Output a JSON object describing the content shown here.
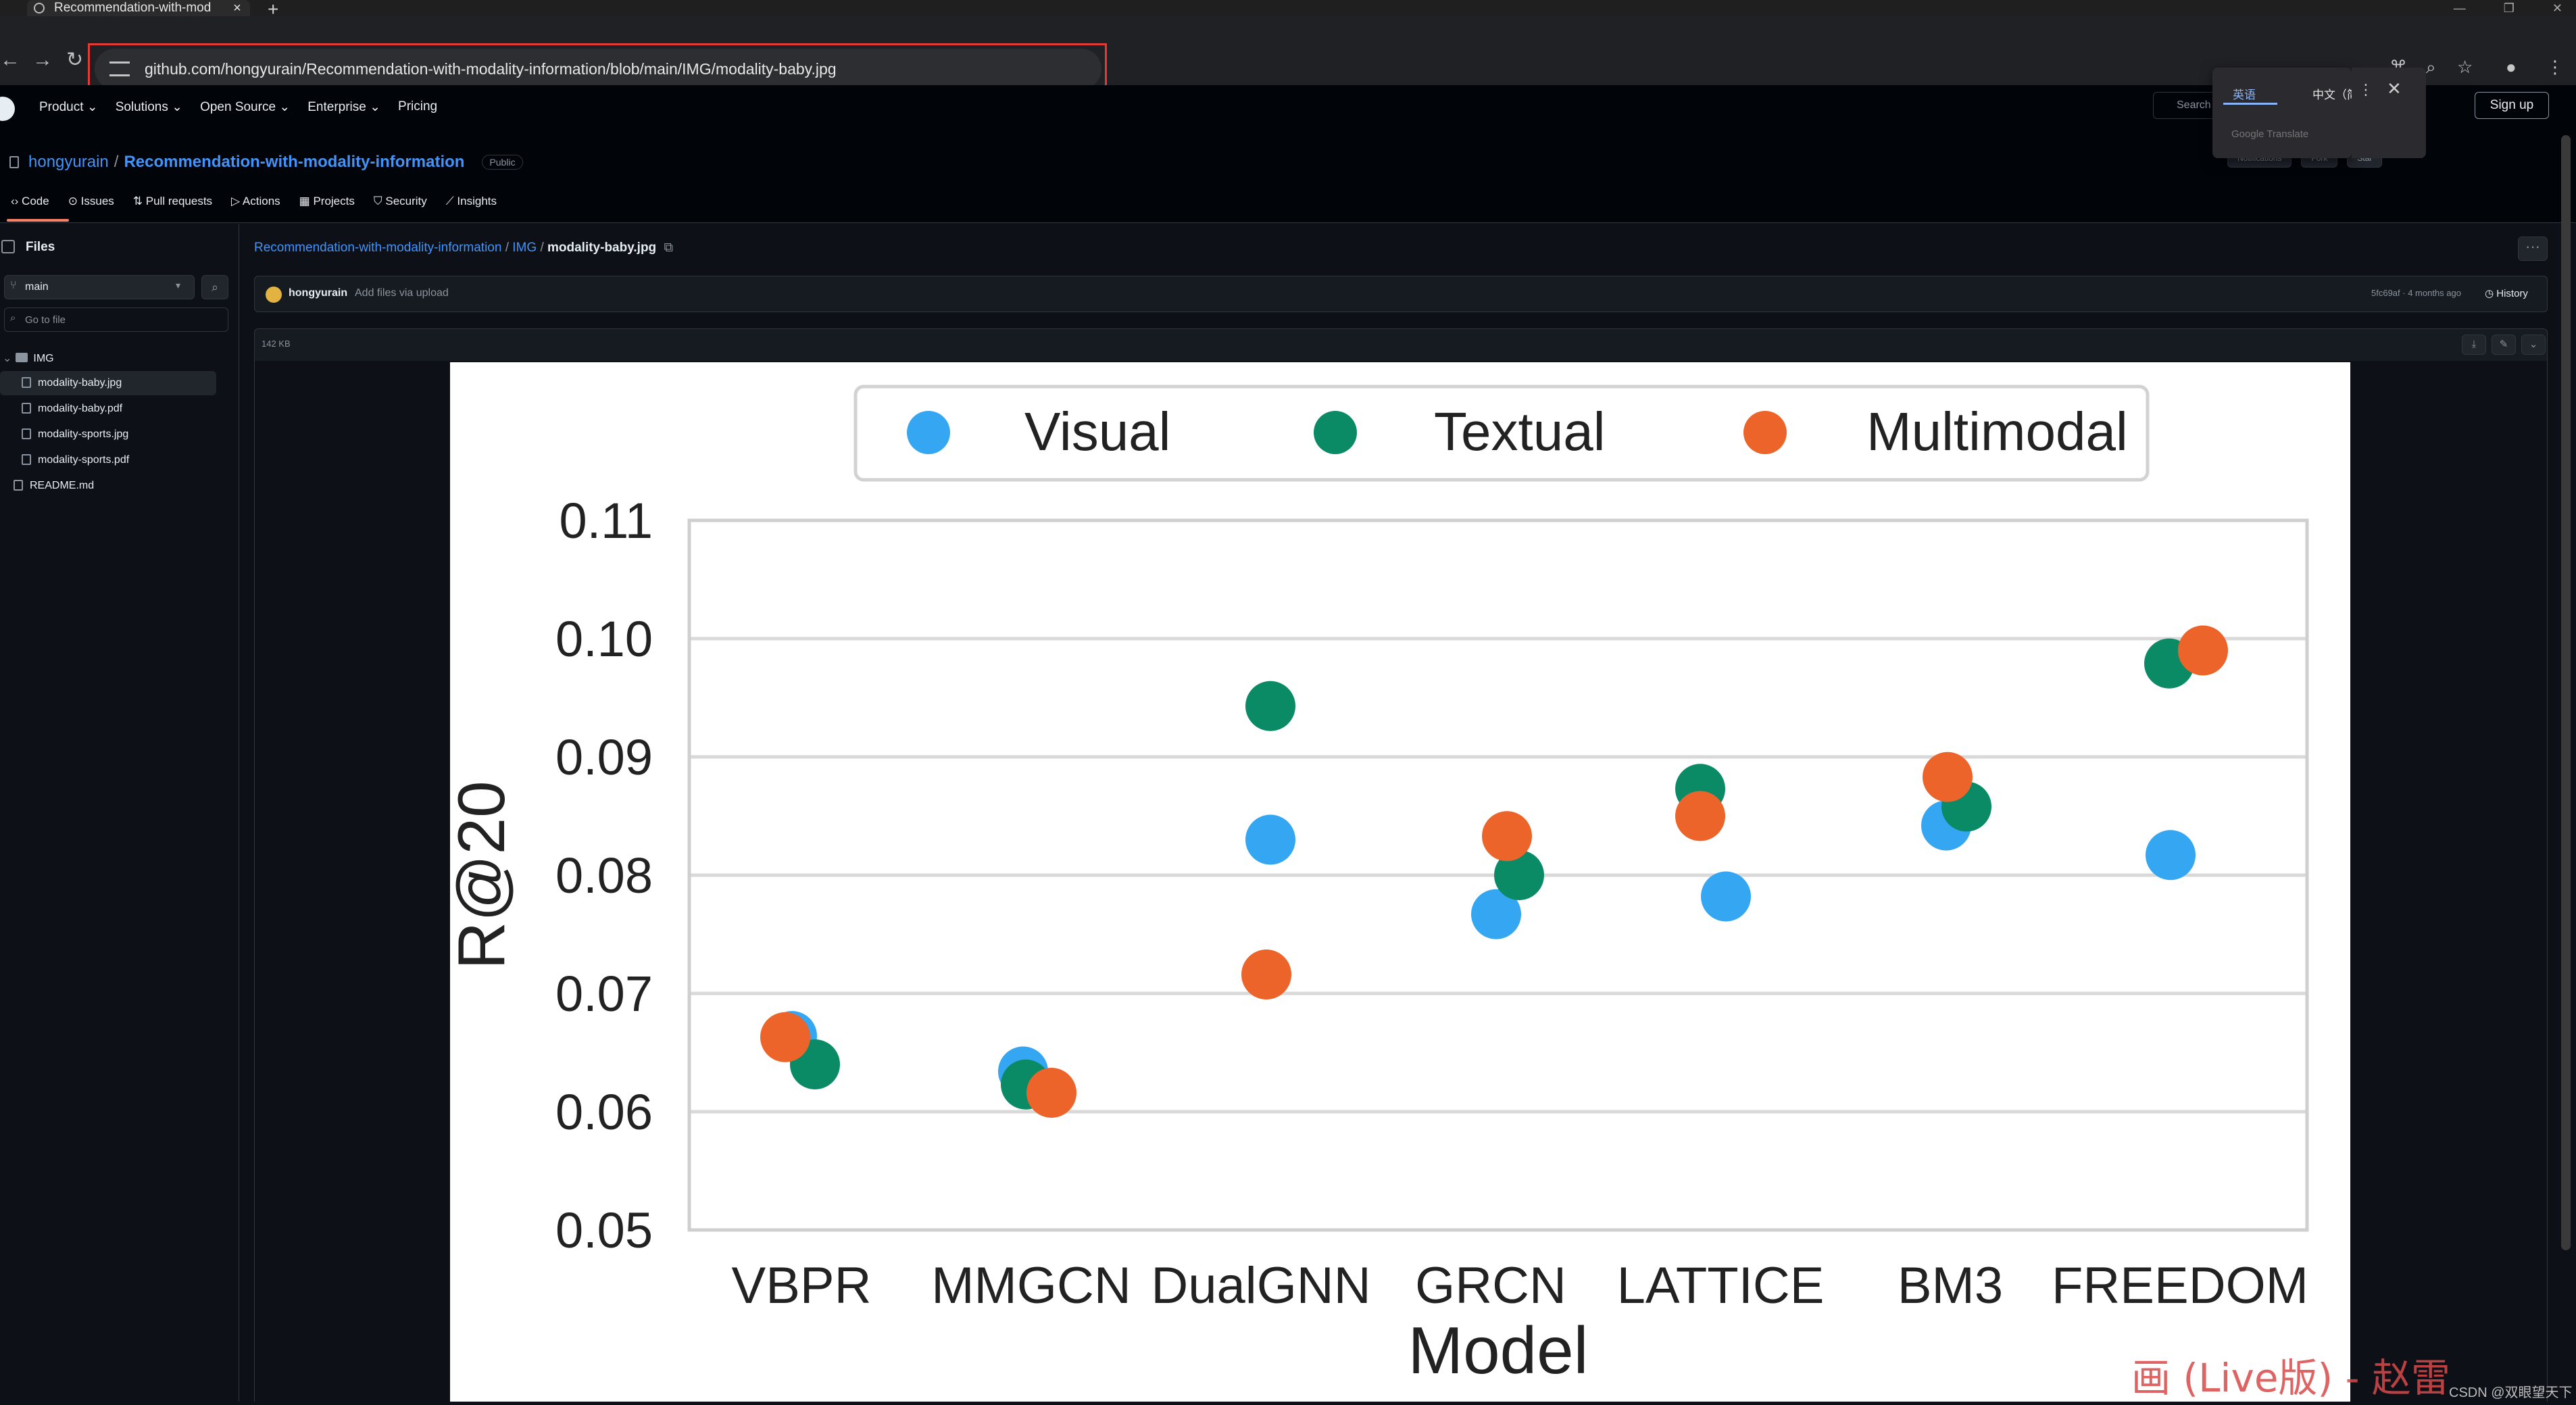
{
  "browser": {
    "tab_title": "Recommendation-with-mod",
    "tab_close": "×",
    "new_tab": "+",
    "window_controls": [
      "—",
      "❐",
      "✕"
    ],
    "url": "github.com/hongyurain/Recommendation-with-modality-information/blob/main/IMG/modality-baby.jpg",
    "toolbar_icons": [
      "translate-icon",
      "zoom-icon",
      "star-icon",
      "profile-icon",
      "menu-icon"
    ]
  },
  "github_header": {
    "nav": [
      "Product ⌄",
      "Solutions ⌄",
      "Open Source ⌄",
      "Enterprise ⌄",
      "Pricing"
    ],
    "search": "Search",
    "signup": "Sign up"
  },
  "translate_popup": {
    "lang_a": "英语",
    "lang_b": "中文（简体）",
    "brand": "Google Translate",
    "more": "⋮",
    "close": "✕"
  },
  "repo": {
    "owner": "hongyurain",
    "sep": "/",
    "name": "Recommendation-with-modality-information",
    "visibility": "Public",
    "actions": [
      "Notifications",
      "Fork",
      "Star"
    ],
    "tabs": [
      "Code",
      "Issues",
      "Pull requests",
      "Actions",
      "Projects",
      "Security",
      "Insights"
    ]
  },
  "sidebar": {
    "title": "Files",
    "branch": "main",
    "branch_caret": "▾",
    "goto_placeholder": "Go to file",
    "tree": [
      {
        "label": "IMG",
        "type": "folder"
      },
      {
        "label": "modality-baby.jpg",
        "type": "file",
        "selected": true
      },
      {
        "label": "modality-baby.pdf",
        "type": "file"
      },
      {
        "label": "modality-sports.jpg",
        "type": "file"
      },
      {
        "label": "modality-sports.pdf",
        "type": "file"
      },
      {
        "label": "README.md",
        "type": "file"
      }
    ]
  },
  "main": {
    "breadcrumb": {
      "repo": "Recommendation-with-modality-information",
      "folder": "IMG",
      "file": "modality-baby.jpg",
      "sep": "/"
    },
    "more": "···",
    "commit": {
      "author": "hongyurain",
      "message": "Add files via upload",
      "meta": "5fc69af · 4 months ago",
      "history": "History"
    },
    "file_size": "142 KB",
    "file_buttons": [
      "⤓",
      "✎",
      "⌄"
    ]
  },
  "chart_data": {
    "type": "scatter",
    "title": "",
    "xlabel": "Model",
    "ylabel": "R@20",
    "categories": [
      "VBPR",
      "MMGCN",
      "DualGNN",
      "GRCN",
      "LATTICE",
      "BM3",
      "FREEDOM"
    ],
    "ylim": [
      0.05,
      0.11
    ],
    "yticks": [
      "0.05",
      "0.06",
      "0.07",
      "0.08",
      "0.09",
      "0.10",
      "0.11"
    ],
    "grid": true,
    "legend": "top",
    "series": [
      {
        "name": "Visual",
        "color": "#35a7f2",
        "values": [
          0.0664,
          0.0634,
          0.083,
          0.0767,
          0.0782,
          0.0842,
          0.0817
        ]
      },
      {
        "name": "Textual",
        "color": "#0b8a66",
        "values": [
          0.064,
          0.0623,
          0.0943,
          0.08,
          0.0873,
          0.0858,
          0.0979
        ]
      },
      {
        "name": "Multimodal",
        "color": "#ec6429",
        "values": [
          0.0663,
          0.0616,
          0.0716,
          0.0833,
          0.085,
          0.0883,
          0.099
        ]
      }
    ]
  },
  "watermark": {
    "main": "画 (Live版) - 赵雷",
    "credit": "CSDN @双眼望天下"
  }
}
